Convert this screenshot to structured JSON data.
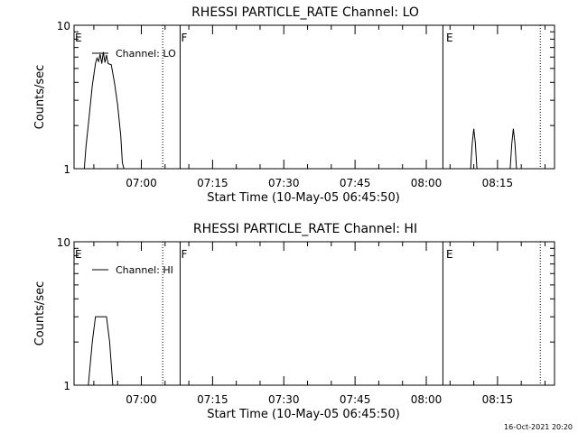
{
  "footer": {
    "timestamp": "16-Oct-2021 20:20"
  },
  "chart_data": [
    {
      "type": "line",
      "title": "RHESSI PARTICLE_RATE Channel: LO",
      "xlabel": "Start Time (10-May-05 06:45:50)",
      "ylabel": "Counts/sec",
      "yscale": "log",
      "ylim": [
        1,
        10
      ],
      "ytick_labels": [
        "1",
        "10"
      ],
      "xlim": [
        "06:45:50",
        "08:27:00"
      ],
      "xtick_labels": [
        "07:00",
        "07:15",
        "07:30",
        "07:45",
        "08:00",
        "08:15"
      ],
      "legend": {
        "position": "top-left",
        "entries": [
          "Channel: LO"
        ]
      },
      "markers": [
        {
          "label": "E",
          "time": "06:45:50",
          "style": "none"
        },
        {
          "label": "F",
          "time": "07:08:10",
          "style": "solid"
        },
        {
          "label": "E",
          "time": "08:04:00",
          "style": "solid"
        }
      ],
      "dotted_lines": [
        "07:04:30",
        "08:24:00"
      ],
      "solid_lines": [
        "07:08:10",
        "08:03:30"
      ],
      "series": [
        {
          "name": "Channel: LO",
          "x": [
            "06:48:00",
            "06:48:20",
            "06:49:00",
            "06:49:40",
            "06:50:20",
            "06:50:40",
            "06:51:00",
            "06:51:20",
            "06:51:40",
            "06:52:00",
            "06:52:20",
            "06:52:40",
            "06:53:00",
            "06:53:40",
            "06:54:20",
            "06:55:00",
            "06:55:40",
            "06:56:00",
            "06:56:20"
          ],
          "y": [
            1.0,
            1.4,
            2.3,
            3.8,
            5.4,
            5.9,
            5.6,
            6.3,
            5.4,
            6.5,
            5.5,
            6.2,
            5.4,
            5.3,
            4.0,
            2.8,
            1.7,
            1.1,
            1.0
          ]
        },
        {
          "name": "",
          "x": [
            "08:09:20",
            "08:09:40",
            "08:10:00",
            "08:10:20",
            "08:10:40"
          ],
          "y": [
            1.0,
            1.5,
            1.9,
            1.5,
            1.0
          ]
        },
        {
          "name": "",
          "x": [
            "08:17:40",
            "08:18:00",
            "08:18:20",
            "08:18:40",
            "08:19:00"
          ],
          "y": [
            1.0,
            1.5,
            1.9,
            1.5,
            1.0
          ]
        }
      ]
    },
    {
      "type": "line",
      "title": "RHESSI PARTICLE_RATE Channel: HI",
      "xlabel": "Start Time (10-May-05 06:45:50)",
      "ylabel": "Counts/sec",
      "yscale": "log",
      "ylim": [
        1,
        10
      ],
      "ytick_labels": [
        "1",
        "10"
      ],
      "xlim": [
        "06:45:50",
        "08:27:00"
      ],
      "xtick_labels": [
        "07:00",
        "07:15",
        "07:30",
        "07:45",
        "08:00",
        "08:15"
      ],
      "legend": {
        "position": "top-left",
        "entries": [
          "Channel: HI"
        ]
      },
      "markers": [
        {
          "label": "E",
          "time": "06:45:50",
          "style": "none"
        },
        {
          "label": "F",
          "time": "07:08:10",
          "style": "solid"
        },
        {
          "label": "E",
          "time": "08:04:00",
          "style": "solid"
        }
      ],
      "dotted_lines": [
        "07:04:30",
        "08:24:00"
      ],
      "solid_lines": [
        "07:08:10",
        "08:03:30"
      ],
      "series": [
        {
          "name": "Channel: HI",
          "x": [
            "06:48:50",
            "06:49:40",
            "06:50:20",
            "06:52:40",
            "06:53:20",
            "06:54:00"
          ],
          "y": [
            1.0,
            2.0,
            3.0,
            3.0,
            2.0,
            1.0
          ]
        }
      ]
    }
  ]
}
